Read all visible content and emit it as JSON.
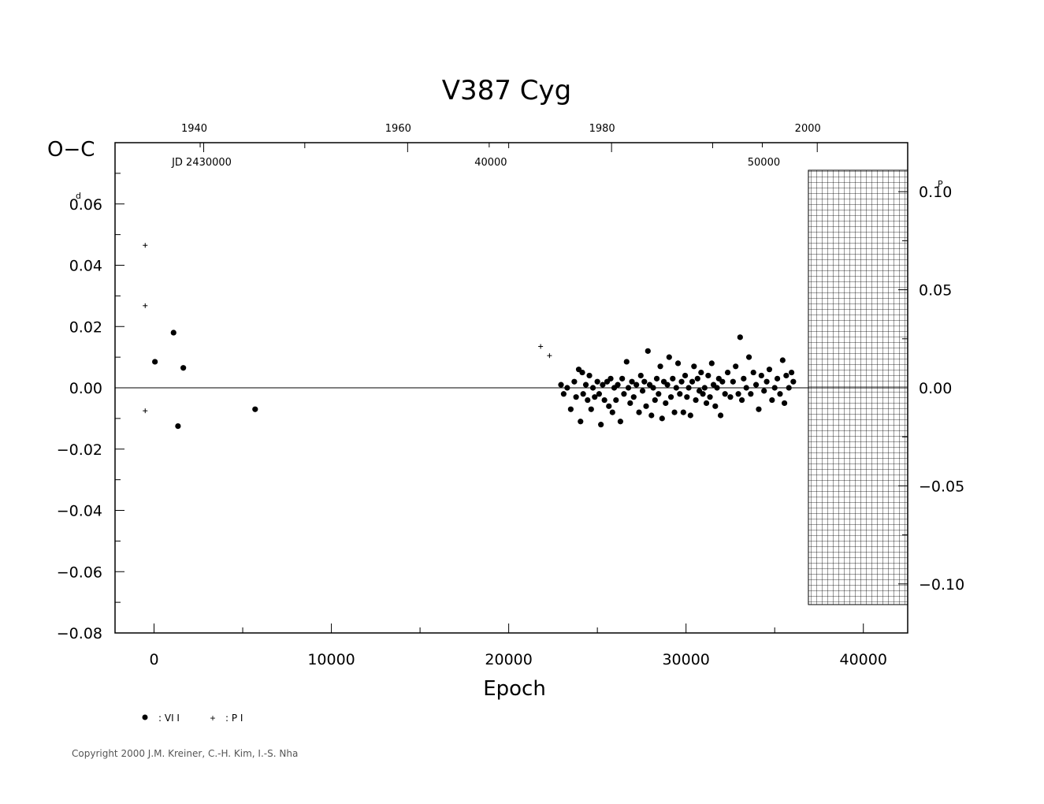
{
  "chart_data": {
    "type": "scatter",
    "title": "V387  Cyg",
    "ylabel": "O−C",
    "ylabel_unit": "d",
    "xlabel": "Epoch",
    "xlim": [
      -2200,
      42500
    ],
    "ylim": [
      -0.08,
      0.08
    ],
    "x_ticks": [
      0,
      10000,
      20000,
      30000,
      40000
    ],
    "x_tick_labels": [
      "0",
      "10000",
      "20000",
      "30000",
      "40000"
    ],
    "y_ticks": [
      -0.08,
      -0.06,
      -0.04,
      -0.02,
      0.0,
      0.02,
      0.04,
      0.06
    ],
    "y_tick_labels": [
      "−0.08",
      "−0.06",
      "−0.04",
      "−0.02",
      "0.00",
      "0.02",
      "0.04",
      "0.06"
    ],
    "right_axis": {
      "unit": "P",
      "ticks": [
        -0.1,
        -0.05,
        0.0,
        0.05,
        0.1
      ],
      "tick_labels": [
        "−0.10",
        "−0.05",
        "0.00",
        "0.05",
        "0.10"
      ],
      "scale": 0.64
    },
    "top_year_ticks": {
      "labels": [
        "1940",
        "1960",
        "1980",
        "2000"
      ],
      "epochs": [
        2800,
        14300,
        25800,
        37400
      ]
    },
    "top_jd_ticks": {
      "labels": [
        "JD  2430000",
        "40000",
        "50000"
      ],
      "epochs": [
        2600,
        18900,
        34300
      ]
    },
    "hatched_region": [
      36900,
      42500
    ],
    "grid": false,
    "series": [
      {
        "name": ": VI I",
        "marker": "dot",
        "points": [
          [
            50,
            0.0085
          ],
          [
            1100,
            0.018
          ],
          [
            1350,
            -0.0125
          ],
          [
            1650,
            0.0065
          ],
          [
            5700,
            -0.007
          ],
          [
            22950,
            0.001
          ],
          [
            23100,
            -0.002
          ],
          [
            23300,
            0.0
          ],
          [
            23500,
            -0.007
          ],
          [
            23700,
            0.002
          ],
          [
            23800,
            -0.003
          ],
          [
            23950,
            0.006
          ],
          [
            24050,
            -0.011
          ],
          [
            24150,
            0.005
          ],
          [
            24200,
            -0.002
          ],
          [
            24350,
            0.001
          ],
          [
            24450,
            -0.004
          ],
          [
            24550,
            0.004
          ],
          [
            24650,
            -0.007
          ],
          [
            24750,
            0.0
          ],
          [
            24850,
            -0.003
          ],
          [
            25000,
            0.002
          ],
          [
            25100,
            -0.002
          ],
          [
            25200,
            -0.012
          ],
          [
            25300,
            0.001
          ],
          [
            25400,
            -0.004
          ],
          [
            25550,
            0.002
          ],
          [
            25650,
            -0.006
          ],
          [
            25750,
            0.003
          ],
          [
            25850,
            -0.008
          ],
          [
            25950,
            0.0
          ],
          [
            26050,
            -0.004
          ],
          [
            26150,
            0.001
          ],
          [
            26300,
            -0.011
          ],
          [
            26400,
            0.003
          ],
          [
            26500,
            -0.002
          ],
          [
            26650,
            0.0085
          ],
          [
            26750,
            0.0
          ],
          [
            26850,
            -0.005
          ],
          [
            26950,
            0.002
          ],
          [
            27050,
            -0.003
          ],
          [
            27200,
            0.001
          ],
          [
            27350,
            -0.008
          ],
          [
            27450,
            0.004
          ],
          [
            27550,
            -0.001
          ],
          [
            27650,
            0.002
          ],
          [
            27750,
            -0.006
          ],
          [
            27850,
            0.012
          ],
          [
            27950,
            0.001
          ],
          [
            28050,
            -0.009
          ],
          [
            28150,
            0.0
          ],
          [
            28250,
            -0.004
          ],
          [
            28350,
            0.003
          ],
          [
            28450,
            -0.002
          ],
          [
            28550,
            0.007
          ],
          [
            28650,
            -0.01
          ],
          [
            28750,
            0.002
          ],
          [
            28850,
            -0.005
          ],
          [
            28950,
            0.001
          ],
          [
            29050,
            0.01
          ],
          [
            29150,
            -0.003
          ],
          [
            29250,
            0.003
          ],
          [
            29350,
            -0.008
          ],
          [
            29450,
            0.0
          ],
          [
            29550,
            0.008
          ],
          [
            29650,
            -0.002
          ],
          [
            29750,
            0.002
          ],
          [
            29850,
            -0.008
          ],
          [
            29950,
            0.004
          ],
          [
            30050,
            -0.003
          ],
          [
            30150,
            0.0
          ],
          [
            30250,
            -0.009
          ],
          [
            30350,
            0.002
          ],
          [
            30450,
            0.007
          ],
          [
            30550,
            -0.004
          ],
          [
            30650,
            0.003
          ],
          [
            30750,
            -0.001
          ],
          [
            30850,
            0.005
          ],
          [
            30950,
            -0.002
          ],
          [
            31050,
            0.0
          ],
          [
            31150,
            -0.005
          ],
          [
            31250,
            0.004
          ],
          [
            31350,
            -0.003
          ],
          [
            31450,
            0.008
          ],
          [
            31550,
            0.001
          ],
          [
            31650,
            -0.006
          ],
          [
            31750,
            0.0
          ],
          [
            31850,
            0.003
          ],
          [
            31950,
            -0.009
          ],
          [
            32050,
            0.002
          ],
          [
            32200,
            -0.002
          ],
          [
            32350,
            0.005
          ],
          [
            32500,
            -0.003
          ],
          [
            32650,
            0.002
          ],
          [
            32800,
            0.007
          ],
          [
            32950,
            -0.002
          ],
          [
            33050,
            0.0165
          ],
          [
            33150,
            -0.004
          ],
          [
            33250,
            0.003
          ],
          [
            33400,
            0.0
          ],
          [
            33550,
            0.01
          ],
          [
            33650,
            -0.002
          ],
          [
            33800,
            0.005
          ],
          [
            33950,
            0.001
          ],
          [
            34100,
            -0.007
          ],
          [
            34250,
            0.004
          ],
          [
            34400,
            -0.001
          ],
          [
            34550,
            0.002
          ],
          [
            34700,
            0.006
          ],
          [
            34850,
            -0.004
          ],
          [
            35000,
            0.0
          ],
          [
            35150,
            0.003
          ],
          [
            35300,
            -0.002
          ],
          [
            35450,
            0.009
          ],
          [
            35550,
            -0.005
          ],
          [
            35650,
            0.004
          ],
          [
            35800,
            0.0
          ],
          [
            35950,
            0.005
          ],
          [
            36050,
            0.002
          ]
        ]
      },
      {
        "name": ": P I",
        "marker": "plus",
        "points": [
          [
            -500,
            0.0465
          ],
          [
            -500,
            0.0268
          ],
          [
            -500,
            -0.0075
          ],
          [
            21800,
            0.0135
          ],
          [
            22300,
            0.0105
          ]
        ]
      }
    ]
  },
  "copyright": "Copyright 2000 J.M. Kreiner, C.-H. Kim, I.-S. Nha"
}
